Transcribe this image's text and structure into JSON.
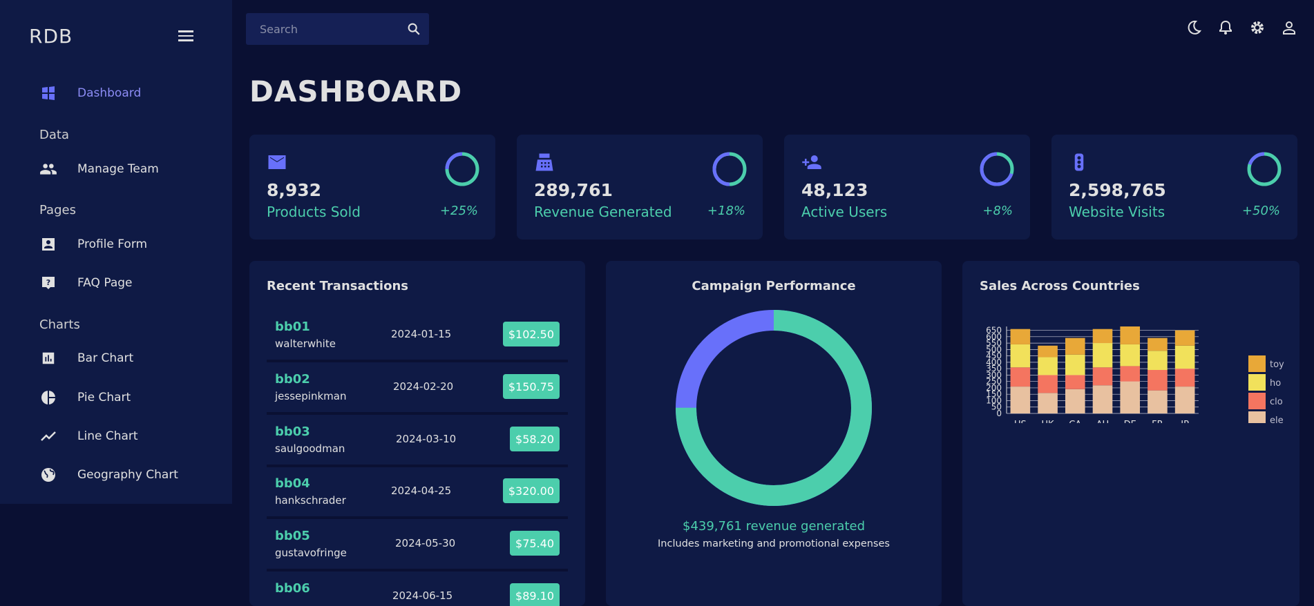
{
  "brand": "RDB",
  "sidebar": {
    "dashboard": "Dashboard",
    "sections": [
      "Data",
      "Pages",
      "Charts"
    ],
    "items": [
      {
        "label": "Manage Team",
        "icon": "people-icon"
      },
      {
        "label": "Profile Form",
        "icon": "contact-card-icon"
      },
      {
        "label": "FAQ Page",
        "icon": "help-icon"
      },
      {
        "label": "Bar Chart",
        "icon": "bar-chart-icon"
      },
      {
        "label": "Pie Chart",
        "icon": "pie-chart-icon"
      },
      {
        "label": "Line Chart",
        "icon": "line-chart-icon"
      },
      {
        "label": "Geography Chart",
        "icon": "globe-icon"
      }
    ]
  },
  "search": {
    "placeholder": "Search"
  },
  "page_title": "DASHBOARD",
  "stats": [
    {
      "value": "8,932",
      "label": "Products Sold",
      "change": "+25%",
      "progress": 0.75,
      "icon": "email-icon"
    },
    {
      "value": "289,761",
      "label": "Revenue Generated",
      "change": "+18%",
      "progress": 0.5,
      "icon": "point-of-sale-icon"
    },
    {
      "value": "48,123",
      "label": "Active Users",
      "change": "+8%",
      "progress": 0.3,
      "icon": "person-add-icon"
    },
    {
      "value": "2,598,765",
      "label": "Website Visits",
      "change": "+50%",
      "progress": 0.8,
      "icon": "traffic-icon"
    }
  ],
  "transactions": {
    "title": "Recent Transactions",
    "rows": [
      {
        "id": "bb01",
        "user": "walterwhite",
        "date": "2024-01-15",
        "amount": "$102.50"
      },
      {
        "id": "bb02",
        "user": "jessepinkman",
        "date": "2024-02-20",
        "amount": "$150.75"
      },
      {
        "id": "bb03",
        "user": "saulgoodman",
        "date": "2024-03-10",
        "amount": "$58.20"
      },
      {
        "id": "bb04",
        "user": "hankschrader",
        "date": "2024-04-25",
        "amount": "$320.00"
      },
      {
        "id": "bb05",
        "user": "gustavofringe",
        "date": "2024-05-30",
        "amount": "$75.40"
      },
      {
        "id": "bb06",
        "user": "",
        "date": "2024-06-15",
        "amount": "$89.10"
      }
    ]
  },
  "campaign": {
    "title": "Campaign Performance",
    "revenue_text": "$439,761 revenue generated",
    "subtext": "Includes marketing and promotional expenses",
    "progress": 0.75
  },
  "colors": {
    "accent": "#4cceac",
    "primary": "#6870fa",
    "bg": "#0a1033",
    "panel": "#0f1a45"
  },
  "chart_data": {
    "type": "bar",
    "stacked": true,
    "title": "Sales Across Countries",
    "categories": [
      "US",
      "UK",
      "CA",
      "AU",
      "DE",
      "FR",
      "JP"
    ],
    "series": [
      {
        "name": "electronics",
        "legend_label": "ele",
        "color": "#e8c1a0",
        "values": [
          210,
          160,
          190,
          220,
          250,
          180,
          210
        ]
      },
      {
        "name": "clothing",
        "legend_label": "clo",
        "color": "#f47560",
        "values": [
          150,
          140,
          110,
          140,
          120,
          160,
          140
        ]
      },
      {
        "name": "home",
        "legend_label": "ho",
        "color": "#f1e15b",
        "values": [
          180,
          140,
          160,
          190,
          170,
          150,
          180
        ]
      },
      {
        "name": "toys",
        "legend_label": "toy",
        "color": "#e8a838",
        "values": [
          120,
          90,
          130,
          110,
          140,
          100,
          120
        ]
      }
    ],
    "yticks": [
      0,
      50,
      100,
      150,
      200,
      250,
      300,
      350,
      400,
      450,
      500,
      550,
      600,
      650
    ],
    "ylim": [
      0,
      680
    ],
    "legend": "right"
  }
}
